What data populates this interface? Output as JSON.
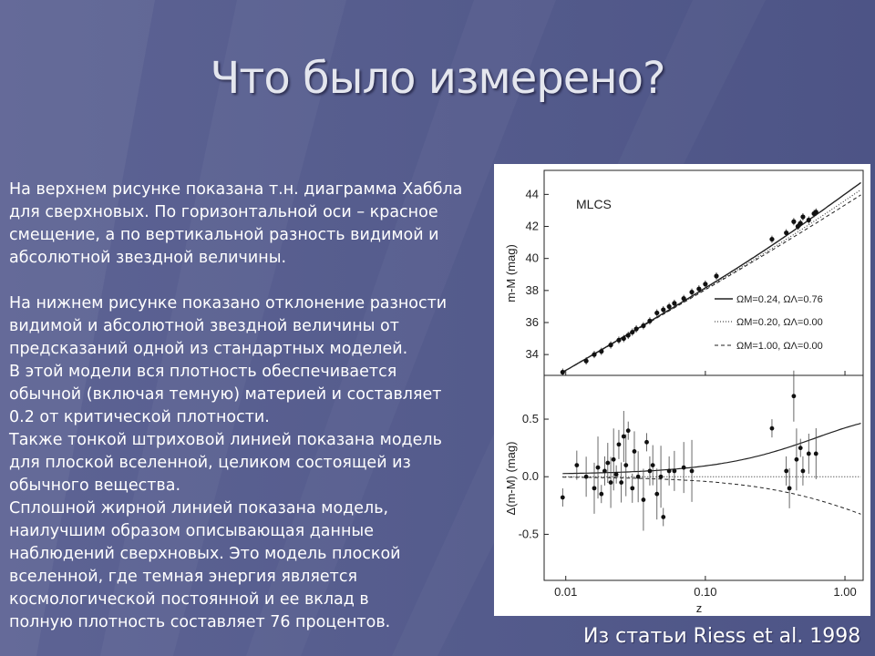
{
  "slide": {
    "title": "Что было измерено?",
    "paragraph1": "На верхнем рисунке показана т.н. диаграмма Хаббла\nдля сверхновых. По горизонтальной оси – красное\nсмещение, а по вертикальной разность видимой и\nабсолютной звездной величины.",
    "paragraph2": "На нижнем рисунке показано отклонение разности\nвидимой и абсолютной звездной величины от\nпредсказаний одной из стандартных моделей.\nВ этой модели вся плотность обеспечивается\nобычной (включая темную) материей и составляет\n0.2 от критической плотности.\nТакже тонкой штриховой линией показана модель\nдля плоской вселенной, целиком состоящей из\nобычного вещества.\nСплошной жирной линией показана модель,\nнаилучшим образом описывающая данные\nнаблюдений сверхновых. Это модель плоской\nвселенной, где темная энергия является\nкосмологической постоянной и ее вклад в\nполную плотность составляет 76 процентов.",
    "caption": "Из статьи Riess et al. 1998"
  },
  "colors": {
    "background": "#585e90",
    "text": "#ffffff",
    "title": "#e4e6ee"
  },
  "chart_data": [
    {
      "type": "scatter",
      "annotation": "MLCS",
      "xlabel": "",
      "ylabel": "m-M (mag)",
      "x_scale": "log",
      "xlim": [
        0.007,
        1.35
      ],
      "ylim": [
        32.7,
        45.5
      ],
      "yticks": [
        "34",
        "36",
        "38",
        "40",
        "42",
        "44"
      ],
      "legend": [
        "ΩM=0.24, ΩΛ=0.76",
        "ΩM=0.20, ΩΛ=0.00",
        "ΩM=1.00, ΩΛ=0.00"
      ],
      "legend_placement": "right",
      "series": [
        {
          "x": [
            0.0095,
            0.014,
            0.016,
            0.018,
            0.021,
            0.024,
            0.026,
            0.028,
            0.03,
            0.032,
            0.036,
            0.04,
            0.045,
            0.05,
            0.055,
            0.06,
            0.07,
            0.08,
            0.09,
            0.1,
            0.12,
            0.3,
            0.38,
            0.43,
            0.46,
            0.48,
            0.5,
            0.55,
            0.6,
            0.62
          ],
          "y": [
            32.9,
            33.6,
            34.0,
            34.2,
            34.6,
            34.9,
            35.0,
            35.2,
            35.4,
            35.6,
            35.8,
            36.1,
            36.6,
            36.8,
            37.0,
            37.2,
            37.5,
            37.9,
            38.1,
            38.4,
            38.9,
            41.2,
            41.6,
            42.3,
            42.0,
            42.2,
            42.6,
            42.4,
            42.8,
            42.9
          ]
        }
      ]
    },
    {
      "type": "scatter",
      "xlabel": "z",
      "ylabel": "Δ(m-M) (mag)",
      "x_scale": "log",
      "xticks": [
        "0.01",
        "0.10",
        "1.00"
      ],
      "xlim": [
        0.007,
        1.35
      ],
      "ylim": [
        -0.9,
        0.88
      ],
      "yticks": [
        "0.5",
        "0.0",
        "-0.5"
      ],
      "series": [
        {
          "x": [
            0.0095,
            0.012,
            0.014,
            0.016,
            0.017,
            0.018,
            0.019,
            0.02,
            0.021,
            0.022,
            0.023,
            0.024,
            0.025,
            0.026,
            0.027,
            0.028,
            0.03,
            0.031,
            0.033,
            0.036,
            0.038,
            0.04,
            0.042,
            0.045,
            0.048,
            0.05,
            0.055,
            0.06,
            0.07,
            0.08,
            0.3,
            0.38,
            0.4,
            0.43,
            0.45,
            0.48,
            0.5,
            0.55,
            0.62
          ],
          "y": [
            -0.18,
            0.1,
            0.0,
            -0.1,
            0.08,
            -0.15,
            0.05,
            0.12,
            -0.05,
            0.15,
            0.02,
            0.28,
            -0.05,
            0.35,
            0.1,
            0.4,
            -0.1,
            0.22,
            0.0,
            -0.2,
            0.3,
            0.05,
            0.1,
            -0.15,
            0.0,
            -0.35,
            0.05,
            0.05,
            0.08,
            0.05,
            0.42,
            0.05,
            -0.1,
            0.7,
            0.15,
            0.25,
            0.05,
            0.2,
            0.2
          ]
        }
      ]
    }
  ]
}
